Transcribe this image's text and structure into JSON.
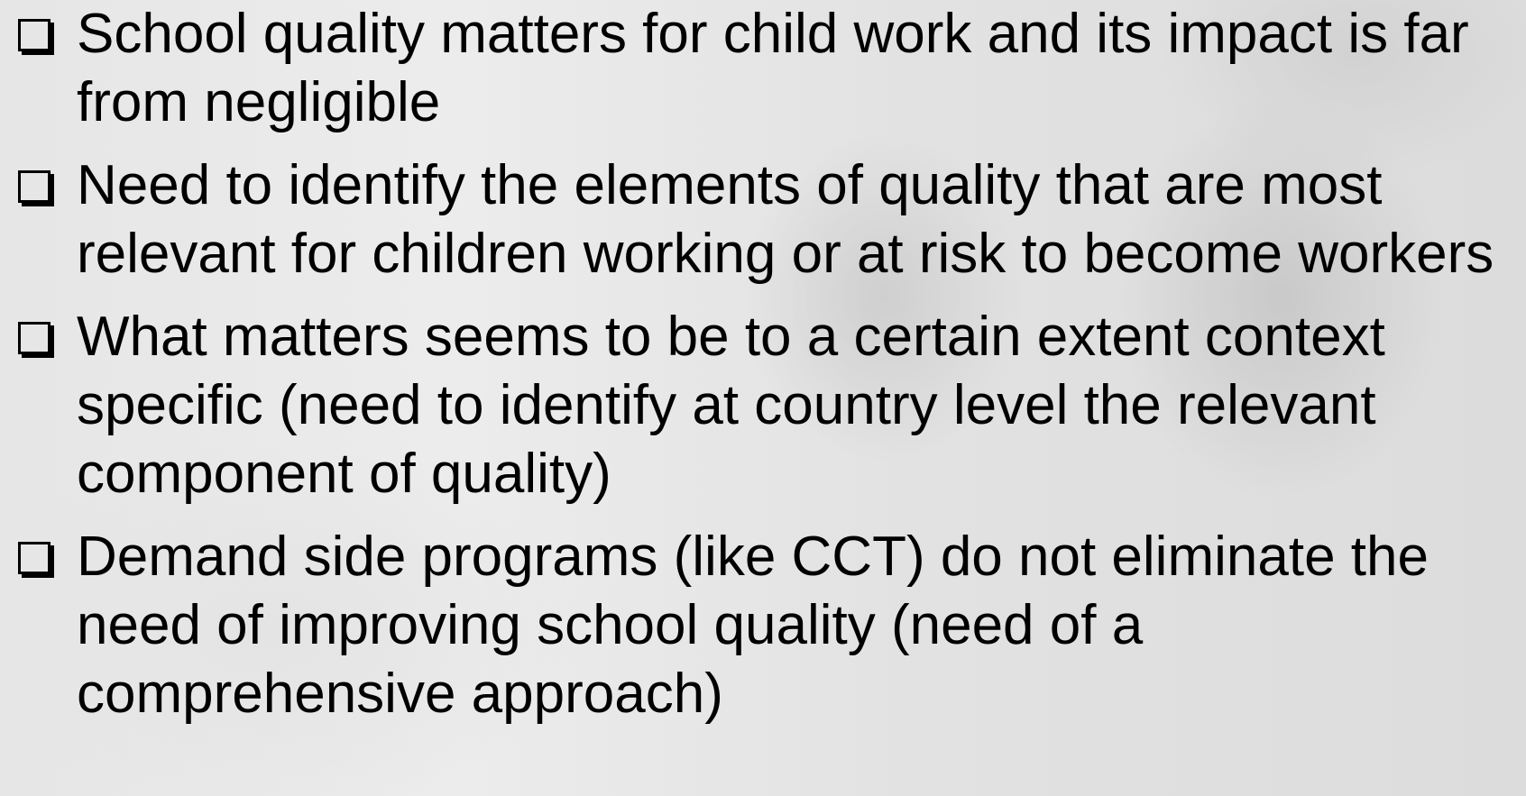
{
  "bullets": [
    "School quality matters for child work and its impact is far from negligible",
    "Need to identify the elements of quality that are most relevant for children working or at risk to become workers",
    "What matters seems to be to a certain extent context specific (need to identify at country level the relevant component of quality)",
    "Demand side programs (like CCT) do not eliminate the need of improving school quality (need of a comprehensive approach)"
  ]
}
